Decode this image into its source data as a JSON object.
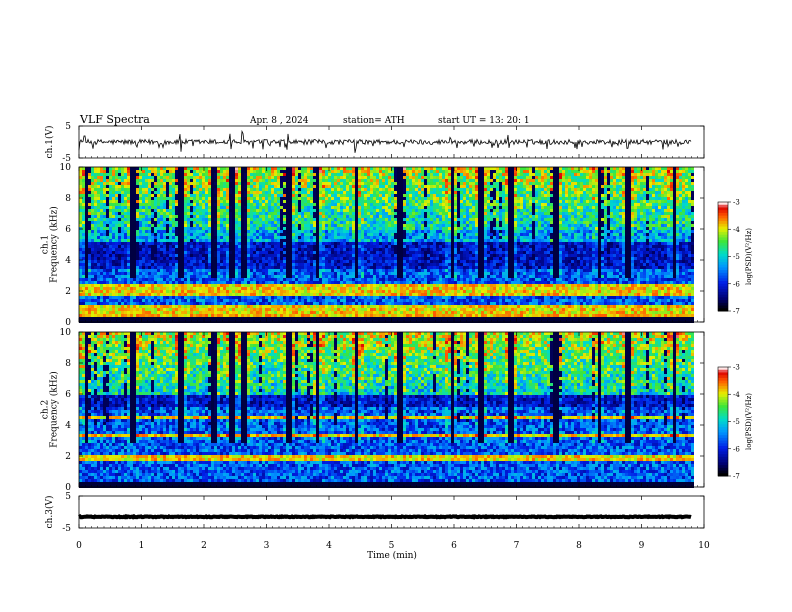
{
  "header": {
    "title": "VLF Spectra",
    "date": "Apr. 8 , 2024",
    "station": "station= ATH",
    "start": "start UT = 13: 20: 1"
  },
  "chart_data": [
    {
      "id": "ch1-waveform",
      "type": "line",
      "ylabel": "ch.1(V)",
      "ylim": [
        -5,
        5
      ],
      "y_ticks": [
        5,
        -5
      ],
      "x_range": [
        0,
        10
      ],
      "x_data_end": 9.8,
      "baseline": 0,
      "spikes": [
        0.09,
        1.62,
        2.42,
        2.62,
        3.33,
        4.42,
        5.95,
        6.88,
        8.77
      ]
    },
    {
      "id": "ch1-spectrogram",
      "type": "heatmap",
      "ylabel": "ch.1\nFrequency (kHz)",
      "ylim": [
        0,
        10
      ],
      "y_ticks": [
        0,
        2,
        4,
        6,
        8,
        10
      ],
      "x_range": [
        0,
        10
      ],
      "x_data_end": 9.8,
      "colorbar": {
        "label": "log(PSD)(V²/Hz)",
        "range": [
          -7,
          -3
        ],
        "ticks": [
          -3,
          -4,
          -5,
          -6,
          -7
        ]
      },
      "bright_bands_khz": [
        0.4,
        0.6,
        1.0,
        2.0,
        2.4
      ],
      "dark_band_khz": [
        3.6,
        5.2
      ],
      "vertical_bursts": [
        0.09,
        0.85,
        1.62,
        2.14,
        2.42,
        2.62,
        3.33,
        3.8,
        4.42,
        5.1,
        5.95,
        6.42,
        6.88,
        7.6,
        8.3,
        8.77,
        9.5
      ]
    },
    {
      "id": "ch2-spectrogram",
      "type": "heatmap",
      "ylabel": "ch.2\nFrequency (kHz)",
      "ylim": [
        0,
        10
      ],
      "y_ticks": [
        0,
        2,
        4,
        6,
        8,
        10
      ],
      "x_range": [
        0,
        10
      ],
      "x_data_end": 9.8,
      "colorbar": {
        "label": "log(PSD)(V²/Hz)",
        "range": [
          -7,
          -3
        ],
        "ticks": [
          -3,
          -4,
          -5,
          -6,
          -7
        ]
      },
      "bright_bands_khz": [
        2.0,
        3.4,
        4.6
      ],
      "dark_band_khz": [
        5.2,
        6.4
      ],
      "vertical_bursts": [
        0.09,
        0.85,
        1.62,
        2.14,
        2.42,
        2.62,
        3.33,
        3.8,
        4.42,
        5.1,
        5.95,
        6.42,
        6.88,
        7.6,
        8.3,
        8.77,
        9.5
      ]
    },
    {
      "id": "ch3-waveform",
      "type": "line",
      "ylabel": "ch.3(V)",
      "ylim": [
        -5,
        5
      ],
      "y_ticks": [
        5,
        -5
      ],
      "x_range": [
        0,
        10
      ],
      "x_data_end": 9.8,
      "baseline": -1.5
    }
  ],
  "x_axis": {
    "label": "Time (min)",
    "ticks": [
      0,
      1,
      2,
      3,
      4,
      5,
      6,
      7,
      8,
      9,
      10
    ]
  }
}
